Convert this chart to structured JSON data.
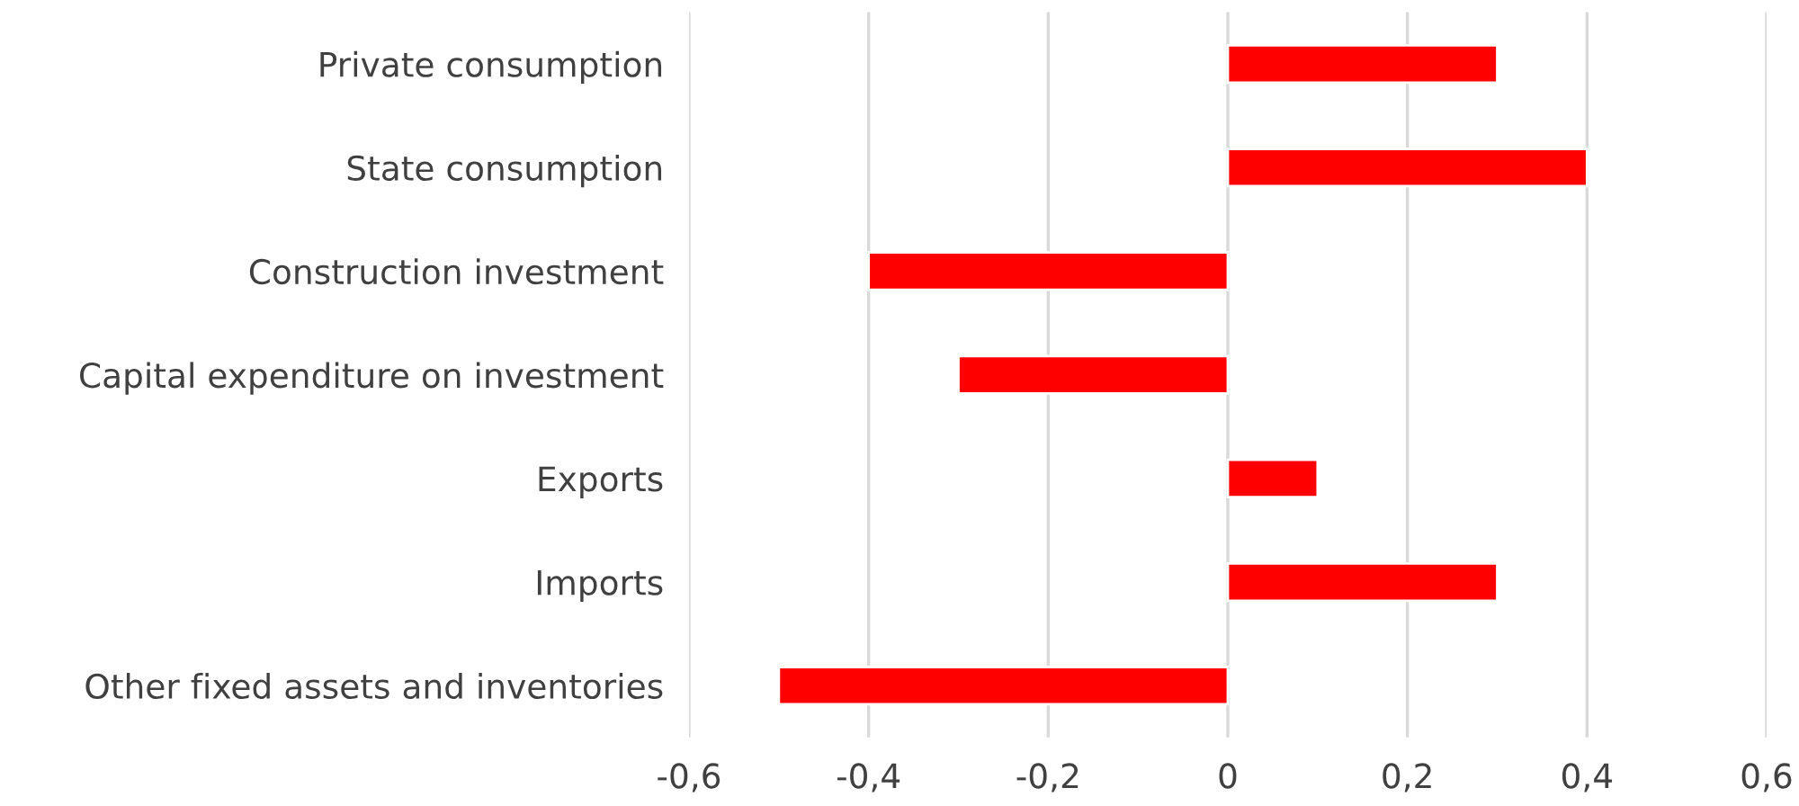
{
  "chart_data": {
    "type": "bar",
    "orientation": "horizontal",
    "categories": [
      "Private consumption",
      "State consumption",
      "Construction investment",
      "Capital expenditure on investment",
      "Exports",
      "Imports",
      "Other fixed assets and inventories"
    ],
    "values": [
      0.3,
      0.4,
      -0.4,
      -0.3,
      0.1,
      0.3,
      -0.5
    ],
    "color": "#ff0000",
    "xlim": [
      -0.6,
      0.6
    ],
    "xticks": [
      {
        "value": -0.6,
        "label": "-0,6"
      },
      {
        "value": -0.4,
        "label": "-0,4"
      },
      {
        "value": -0.2,
        "label": "-0,2"
      },
      {
        "value": 0,
        "label": "0"
      },
      {
        "value": 0.2,
        "label": "0,2"
      },
      {
        "value": 0.4,
        "label": "0,4"
      },
      {
        "value": 0.6,
        "label": "0,6"
      }
    ],
    "grid": "x",
    "legend": false
  }
}
